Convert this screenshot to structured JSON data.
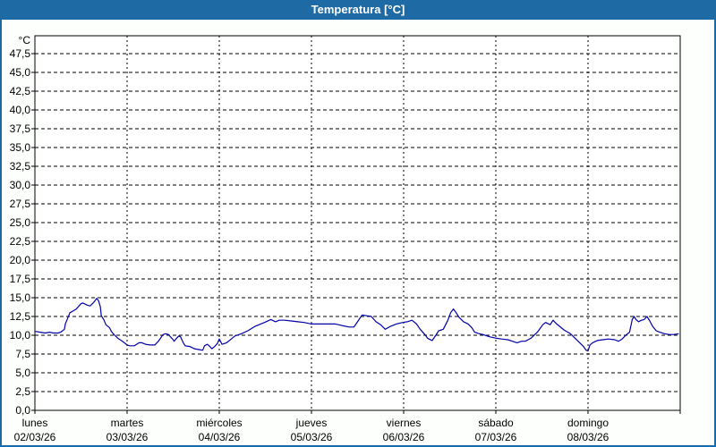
{
  "window": {
    "title": "Temperatura [°C]",
    "title_bar_color": "#1d6aa5",
    "border_color": "#1d6aa5",
    "content_background": "#fdfffd",
    "plot_background": "#ffffff"
  },
  "chart_data": {
    "type": "line",
    "title": "Temperatura [°C]",
    "xlabel": "",
    "ylabel": "°C",
    "ylim": [
      0,
      49.9
    ],
    "x_range_days": 7,
    "grid": "dashed",
    "legend": "none",
    "line_color": "#0000a8",
    "axis_color": "#000000",
    "y_tick_values": [
      47.5,
      45,
      42.5,
      40,
      37.5,
      35,
      32.5,
      30,
      27.5,
      25,
      22.5,
      20,
      17.5,
      15,
      12.5,
      10,
      7.5,
      5,
      2.5,
      0
    ],
    "y_tick_labels": [
      "47,5",
      "45,0",
      "42,5",
      "40,0",
      "37,5",
      "35,0",
      "32,5",
      "30,0",
      "27,5",
      "25,0",
      "22,5",
      "20,0",
      "17,5",
      "15,0",
      "12,5",
      "10,0",
      "7,5",
      "5,0",
      "2,5",
      "0,0"
    ],
    "x_days": [
      {
        "name": "lunes",
        "date": "02/03/26"
      },
      {
        "name": "martes",
        "date": "03/03/26"
      },
      {
        "name": "miércoles",
        "date": "04/03/26"
      },
      {
        "name": "jueves",
        "date": "05/03/26"
      },
      {
        "name": "viernes",
        "date": "06/03/26"
      },
      {
        "name": "sábado",
        "date": "07/03/26"
      },
      {
        "name": "domingo",
        "date": "08/03/26"
      }
    ],
    "series": [
      {
        "name": "Temperatura",
        "x_unit": "days_from_start",
        "y_unit": "°C",
        "points": [
          [
            0.01,
            10.5
          ],
          [
            0.06,
            10.4
          ],
          [
            0.11,
            10.3
          ],
          [
            0.16,
            10.4
          ],
          [
            0.2,
            10.3
          ],
          [
            0.25,
            10.3
          ],
          [
            0.28,
            10.4
          ],
          [
            0.32,
            10.8
          ],
          [
            0.33,
            11.5
          ],
          [
            0.38,
            13.0
          ],
          [
            0.41,
            13.2
          ],
          [
            0.45,
            13.5
          ],
          [
            0.5,
            14.2
          ],
          [
            0.52,
            14.3
          ],
          [
            0.57,
            14.0
          ],
          [
            0.6,
            13.9
          ],
          [
            0.64,
            14.4
          ],
          [
            0.67,
            14.9
          ],
          [
            0.69,
            14.6
          ],
          [
            0.71,
            13.8
          ],
          [
            0.72,
            12.6
          ],
          [
            0.75,
            12.0
          ],
          [
            0.77,
            11.4
          ],
          [
            0.81,
            11.0
          ],
          [
            0.83,
            10.5
          ],
          [
            0.85,
            10.2
          ],
          [
            0.9,
            9.6
          ],
          [
            0.95,
            9.2
          ],
          [
            1.0,
            8.7
          ],
          [
            1.03,
            8.6
          ],
          [
            1.08,
            8.6
          ],
          [
            1.13,
            9.0
          ],
          [
            1.16,
            9.0
          ],
          [
            1.2,
            8.8
          ],
          [
            1.25,
            8.7
          ],
          [
            1.3,
            8.7
          ],
          [
            1.34,
            9.2
          ],
          [
            1.39,
            10.1
          ],
          [
            1.42,
            10.2
          ],
          [
            1.45,
            10.1
          ],
          [
            1.47,
            9.8
          ],
          [
            1.5,
            9.4
          ],
          [
            1.51,
            9.2
          ],
          [
            1.53,
            9.5
          ],
          [
            1.56,
            9.9
          ],
          [
            1.58,
            9.8
          ],
          [
            1.61,
            9.0
          ],
          [
            1.63,
            8.6
          ],
          [
            1.68,
            8.5
          ],
          [
            1.73,
            8.2
          ],
          [
            1.78,
            8.1
          ],
          [
            1.82,
            8.0
          ],
          [
            1.84,
            8.6
          ],
          [
            1.87,
            8.8
          ],
          [
            1.89,
            8.6
          ],
          [
            1.92,
            8.2
          ],
          [
            1.95,
            8.5
          ],
          [
            1.98,
            8.9
          ],
          [
            2.0,
            9.5
          ],
          [
            2.03,
            8.8
          ],
          [
            2.08,
            9.0
          ],
          [
            2.13,
            9.5
          ],
          [
            2.17,
            9.9
          ],
          [
            2.24,
            10.2
          ],
          [
            2.31,
            10.6
          ],
          [
            2.39,
            11.2
          ],
          [
            2.49,
            11.7
          ],
          [
            2.56,
            12.1
          ],
          [
            2.61,
            11.8
          ],
          [
            2.65,
            12.0
          ],
          [
            2.71,
            12.0
          ],
          [
            2.78,
            11.9
          ],
          [
            2.85,
            11.8
          ],
          [
            2.92,
            11.7
          ],
          [
            3.0,
            11.5
          ],
          [
            3.07,
            11.5
          ],
          [
            3.16,
            11.5
          ],
          [
            3.26,
            11.5
          ],
          [
            3.33,
            11.3
          ],
          [
            3.41,
            11.1
          ],
          [
            3.46,
            11.1
          ],
          [
            3.5,
            11.8
          ],
          [
            3.55,
            12.7
          ],
          [
            3.6,
            12.6
          ],
          [
            3.65,
            12.5
          ],
          [
            3.7,
            11.8
          ],
          [
            3.75,
            11.4
          ],
          [
            3.8,
            10.8
          ],
          [
            3.86,
            11.2
          ],
          [
            3.92,
            11.5
          ],
          [
            3.99,
            11.7
          ],
          [
            4.04,
            11.8
          ],
          [
            4.09,
            12.0
          ],
          [
            4.14,
            11.5
          ],
          [
            4.18,
            10.8
          ],
          [
            4.23,
            10.1
          ],
          [
            4.26,
            9.6
          ],
          [
            4.31,
            9.3
          ],
          [
            4.35,
            10.0
          ],
          [
            4.38,
            10.6
          ],
          [
            4.43,
            10.8
          ],
          [
            4.48,
            12.0
          ],
          [
            4.51,
            13.0
          ],
          [
            4.54,
            13.5
          ],
          [
            4.57,
            13.0
          ],
          [
            4.6,
            12.4
          ],
          [
            4.65,
            11.8
          ],
          [
            4.7,
            11.5
          ],
          [
            4.74,
            11.0
          ],
          [
            4.77,
            10.4
          ],
          [
            4.82,
            10.2
          ],
          [
            4.86,
            10.1
          ],
          [
            4.93,
            9.8
          ],
          [
            5.01,
            9.6
          ],
          [
            5.06,
            9.5
          ],
          [
            5.13,
            9.4
          ],
          [
            5.18,
            9.2
          ],
          [
            5.23,
            9.0
          ],
          [
            5.28,
            9.2
          ],
          [
            5.32,
            9.2
          ],
          [
            5.38,
            9.6
          ],
          [
            5.45,
            10.4
          ],
          [
            5.51,
            11.4
          ],
          [
            5.54,
            11.7
          ],
          [
            5.59,
            11.4
          ],
          [
            5.62,
            12.0
          ],
          [
            5.66,
            11.5
          ],
          [
            5.69,
            11.2
          ],
          [
            5.74,
            10.7
          ],
          [
            5.81,
            10.2
          ],
          [
            5.86,
            9.6
          ],
          [
            5.91,
            9.0
          ],
          [
            5.95,
            8.5
          ],
          [
            5.98,
            8.0
          ],
          [
            6.0,
            7.9
          ],
          [
            6.02,
            8.7
          ],
          [
            6.05,
            9.0
          ],
          [
            6.1,
            9.3
          ],
          [
            6.16,
            9.4
          ],
          [
            6.22,
            9.5
          ],
          [
            6.29,
            9.4
          ],
          [
            6.33,
            9.2
          ],
          [
            6.37,
            9.5
          ],
          [
            6.41,
            10.0
          ],
          [
            6.45,
            10.4
          ],
          [
            6.48,
            12.1
          ],
          [
            6.5,
            12.5
          ],
          [
            6.52,
            12.1
          ],
          [
            6.55,
            11.8
          ],
          [
            6.58,
            12.0
          ],
          [
            6.61,
            12.1
          ],
          [
            6.64,
            12.5
          ],
          [
            6.67,
            11.9
          ],
          [
            6.7,
            11.2
          ],
          [
            6.74,
            10.6
          ],
          [
            6.78,
            10.4
          ],
          [
            6.83,
            10.2
          ],
          [
            6.88,
            10.1
          ],
          [
            6.93,
            10.1
          ],
          [
            6.98,
            10.2
          ]
        ]
      }
    ]
  }
}
